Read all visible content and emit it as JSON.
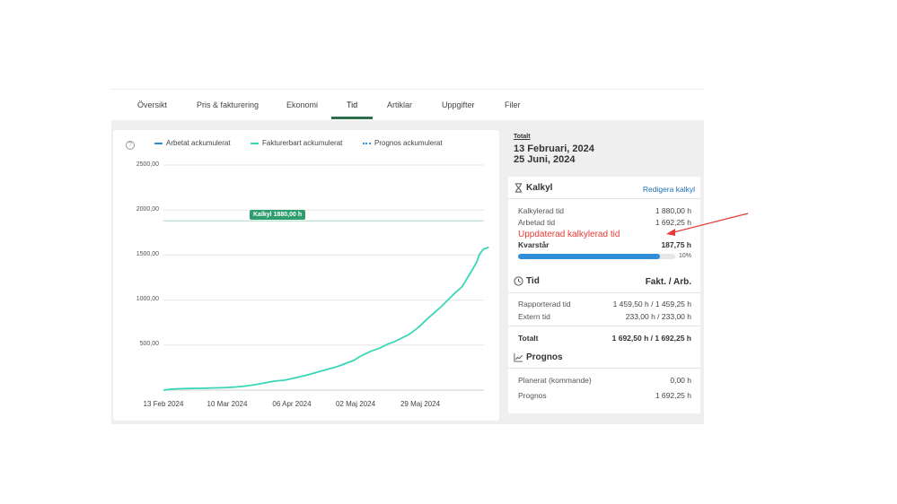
{
  "tabs": [
    {
      "label": "Översikt",
      "active": false
    },
    {
      "label": "Pris & fakturering",
      "active": false
    },
    {
      "label": "Ekonomi",
      "active": false
    },
    {
      "label": "Tid",
      "active": true
    },
    {
      "label": "Artiklar",
      "active": false
    },
    {
      "label": "Uppgifter",
      "active": false
    },
    {
      "label": "Filer",
      "active": false
    }
  ],
  "colors": {
    "arbetat": "#2e8fd8",
    "fakturerbart": "#3ad6b8",
    "prognos": "#2e8fd8",
    "kalkyl_line": "#a8dcc4",
    "kalkyl_badge": "#2f9e6f",
    "tab_active": "#2c6e49",
    "progress": "#2e8fd8",
    "annotation": "#e53935"
  },
  "chart_data": {
    "type": "line",
    "legend": [
      "Arbetat ackumulerat",
      "Fakturerbart ackumulerat",
      "Prognos ackumulerat"
    ],
    "legend_position": "top",
    "yticks": [
      "2500,00",
      "2000,00",
      "1500,00",
      "1000,00",
      "500,00"
    ],
    "ylim": [
      0,
      2500
    ],
    "xticks": [
      "13 Feb 2024",
      "10 Mar 2024",
      "06 Apr 2024",
      "02 Maj 2024",
      "29 Maj 2024"
    ],
    "x_range_days": [
      0,
      133
    ],
    "xtick_days": [
      0,
      26,
      53,
      79,
      106
    ],
    "reference_line": {
      "label": "Kalkyl 1880,00 h",
      "value": 1880
    },
    "series": [
      {
        "name": "Fakturerbart ackumulerat",
        "points": [
          [
            0,
            0
          ],
          [
            3,
            10
          ],
          [
            6,
            15
          ],
          [
            10,
            18
          ],
          [
            14,
            20
          ],
          [
            18,
            22
          ],
          [
            22,
            25
          ],
          [
            26,
            28
          ],
          [
            30,
            35
          ],
          [
            34,
            45
          ],
          [
            38,
            60
          ],
          [
            42,
            80
          ],
          [
            46,
            100
          ],
          [
            50,
            110
          ],
          [
            53,
            125
          ],
          [
            57,
            150
          ],
          [
            60,
            170
          ],
          [
            64,
            200
          ],
          [
            68,
            230
          ],
          [
            72,
            260
          ],
          [
            76,
            300
          ],
          [
            79,
            330
          ],
          [
            82,
            380
          ],
          [
            86,
            430
          ],
          [
            90,
            470
          ],
          [
            93,
            510
          ],
          [
            96,
            540
          ],
          [
            99,
            580
          ],
          [
            102,
            620
          ],
          [
            106,
            700
          ],
          [
            109,
            780
          ],
          [
            112,
            850
          ],
          [
            115,
            920
          ],
          [
            118,
            1000
          ],
          [
            121,
            1080
          ],
          [
            124,
            1150
          ],
          [
            126,
            1240
          ],
          [
            128,
            1330
          ],
          [
            130,
            1420
          ],
          [
            131,
            1500
          ],
          [
            132,
            1540
          ],
          [
            133,
            1570
          ],
          [
            134,
            1575
          ],
          [
            135,
            1590
          ]
        ]
      }
    ]
  },
  "totalt": {
    "label": "Totalt",
    "start": "13 Februari, 2024",
    "end": "25 Juni, 2024"
  },
  "kalkyl": {
    "title": "Kalkyl",
    "edit_link": "Redigera kalkyl",
    "rows": [
      {
        "label": "Kalkylerad tid",
        "value": "1 880,00 h"
      },
      {
        "label": "Arbetad tid",
        "value": "1 692,25 h"
      }
    ],
    "remaining_label": "Kvarstår",
    "remaining_value": "187,75 h",
    "progress_fraction": 0.9,
    "progress_label": "10%"
  },
  "tid": {
    "title": "Tid",
    "column_header": "Fakt. / Arb.",
    "rows": [
      {
        "label": "Rapporterad tid",
        "value": "1 459,50 h / 1 459,25 h"
      },
      {
        "label": "Extern tid",
        "value": "233,00 h / 233,00 h"
      }
    ],
    "total_label": "Totalt",
    "total_value": "1 692,50 h / 1 692,25 h"
  },
  "prognos": {
    "title": "Prognos",
    "rows": [
      {
        "label": "Planerat (kommande)",
        "value": "0,00 h"
      },
      {
        "label": "Prognos",
        "value": "1 692,25 h"
      }
    ]
  },
  "annotation": {
    "text": "Uppdaterad kalkylerad tid"
  }
}
